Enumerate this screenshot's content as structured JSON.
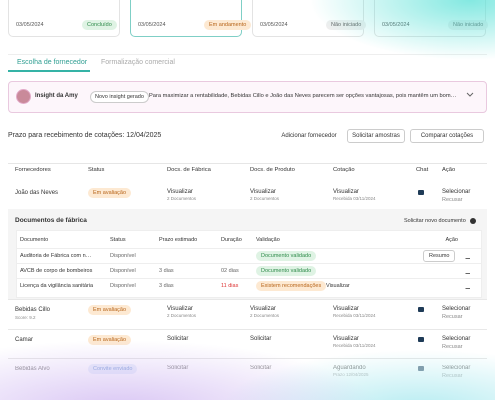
{
  "steps": [
    {
      "date": "03/05/2024",
      "status": "Concluído"
    },
    {
      "date": "03/05/2024",
      "status": "Em andamento"
    },
    {
      "date": "03/05/2024",
      "status": "Não iniciado"
    },
    {
      "date": "03/05/2024",
      "status": "Não iniciado"
    }
  ],
  "tabs": [
    "Escolha de fornecedor",
    "Formalização comercial"
  ],
  "insight": {
    "title": "Insight da Amy",
    "badge": "Novo insight gerado",
    "text": "Para maximizar a rentabilidade, Bebidas Cillo e João das Neves parecem ser opções vantajosas, pois mantêm um bom…"
  },
  "deadline": "Prazo para recebimento de cotações: 12/04/2025",
  "buttons": [
    "Adicionar fornecedor",
    "Solicitar amostras",
    "Comparar cotações"
  ],
  "table": {
    "headers": [
      "Fornecedores",
      "Status",
      "Docs. de Fábrica",
      "Docs. de Produto",
      "Cotação",
      "Chat",
      "Ação"
    ],
    "rows": [
      {
        "name": "João das Neves",
        "status": "Em avaliação",
        "factory": {
          "action": "Visualizar",
          "sub": "2 Documentos"
        },
        "product": {
          "action": "Visualizar",
          "sub": "2 Documentos"
        },
        "quote": {
          "action": "Visualizar",
          "sub": "Recebida 03/11/2024"
        },
        "select": "Selecionar",
        "reject": "Recusar"
      },
      {
        "name": "Bebidas Cillo",
        "score": "Score: 9.2",
        "status": "Em avaliação",
        "factory": {
          "action": "Visualizar",
          "sub": "2 Documentos"
        },
        "product": {
          "action": "Visualizar",
          "sub": "2 Documentos"
        },
        "quote": {
          "action": "Visualizar",
          "sub": "Recebida 03/11/2024"
        },
        "select": "Selecionar",
        "reject": "Recusar"
      },
      {
        "name": "Camar",
        "status": "Em avaliação",
        "factory": {
          "action": "Solicitar"
        },
        "product": {
          "action": "Solicitar"
        },
        "quote": {
          "action": "Visualizar",
          "sub": "Recebida 03/11/2024"
        },
        "select": "Selecionar",
        "reject": "Recusar"
      },
      {
        "name": "Bebidas Alvo",
        "status": "Convite enviado",
        "factory": {
          "action": "Solicitar"
        },
        "product": {
          "action": "Solicitar"
        },
        "quote": {
          "action": "Aguardando",
          "sub": "Prazo 12/04/2025"
        },
        "select": "Selecionar",
        "reject": "Recusar"
      }
    ]
  },
  "factory_docs": {
    "title": "Documentos de fábrica",
    "request": "Solicitar novo documento",
    "headers": [
      "Documento",
      "Status",
      "Prazo estimado",
      "Duração",
      "Validação",
      "Ação"
    ],
    "rows": [
      {
        "document": "Auditoria de Fábrica com n…",
        "status": "Disponível",
        "validation": "Documento validado",
        "action": "Resumo"
      },
      {
        "document": "AVCB de corpo de bombeiros",
        "status": "Disponível",
        "estimate": "3 dias",
        "duration": "02 dias",
        "validation": "Documento validado"
      },
      {
        "document": "Licença da vigilância sanitária",
        "status": "Disponível",
        "estimate": "3 dias",
        "duration": "11 dias",
        "validation": "Existem recomendações",
        "action": "Visualizar"
      }
    ]
  }
}
